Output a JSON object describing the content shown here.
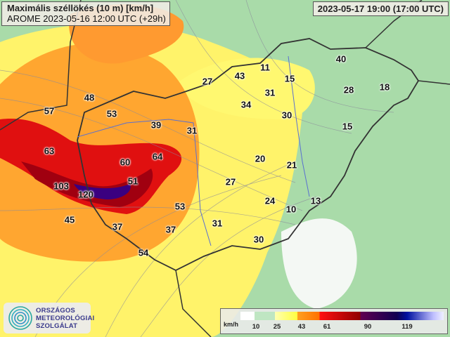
{
  "header": {
    "title": "Maximális széllökés (10 m) [km/h]",
    "subtitle": "AROME 2023-05-16 12:00 UTC (+29h)",
    "valid_time": "2023-05-17 19:00 (17:00 UTC)"
  },
  "labels": [
    "57",
    "48",
    "53",
    "39",
    "31",
    "63",
    "60",
    "64",
    "51",
    "103",
    "120",
    "27",
    "43",
    "11",
    "15",
    "40",
    "28",
    "18",
    "31",
    "34",
    "30",
    "15",
    "20",
    "21",
    "27",
    "24",
    "10",
    "13",
    "53",
    "45",
    "37",
    "37",
    "31",
    "30",
    "54"
  ],
  "legend": {
    "unit": "km/h",
    "ticks": [
      "10",
      "25",
      "43",
      "61",
      "90",
      "119"
    ],
    "colors": [
      "#ffffff",
      "#bfe6c2",
      "#ffff40",
      "#ff7000",
      "#c00000",
      "#600050",
      "#0010a0",
      "#f0f0ff"
    ]
  },
  "logo": {
    "line1": "ORSZÁGOS",
    "line2": "METEOROLÓGIAI",
    "line3": "SZOLGÁLAT"
  }
}
